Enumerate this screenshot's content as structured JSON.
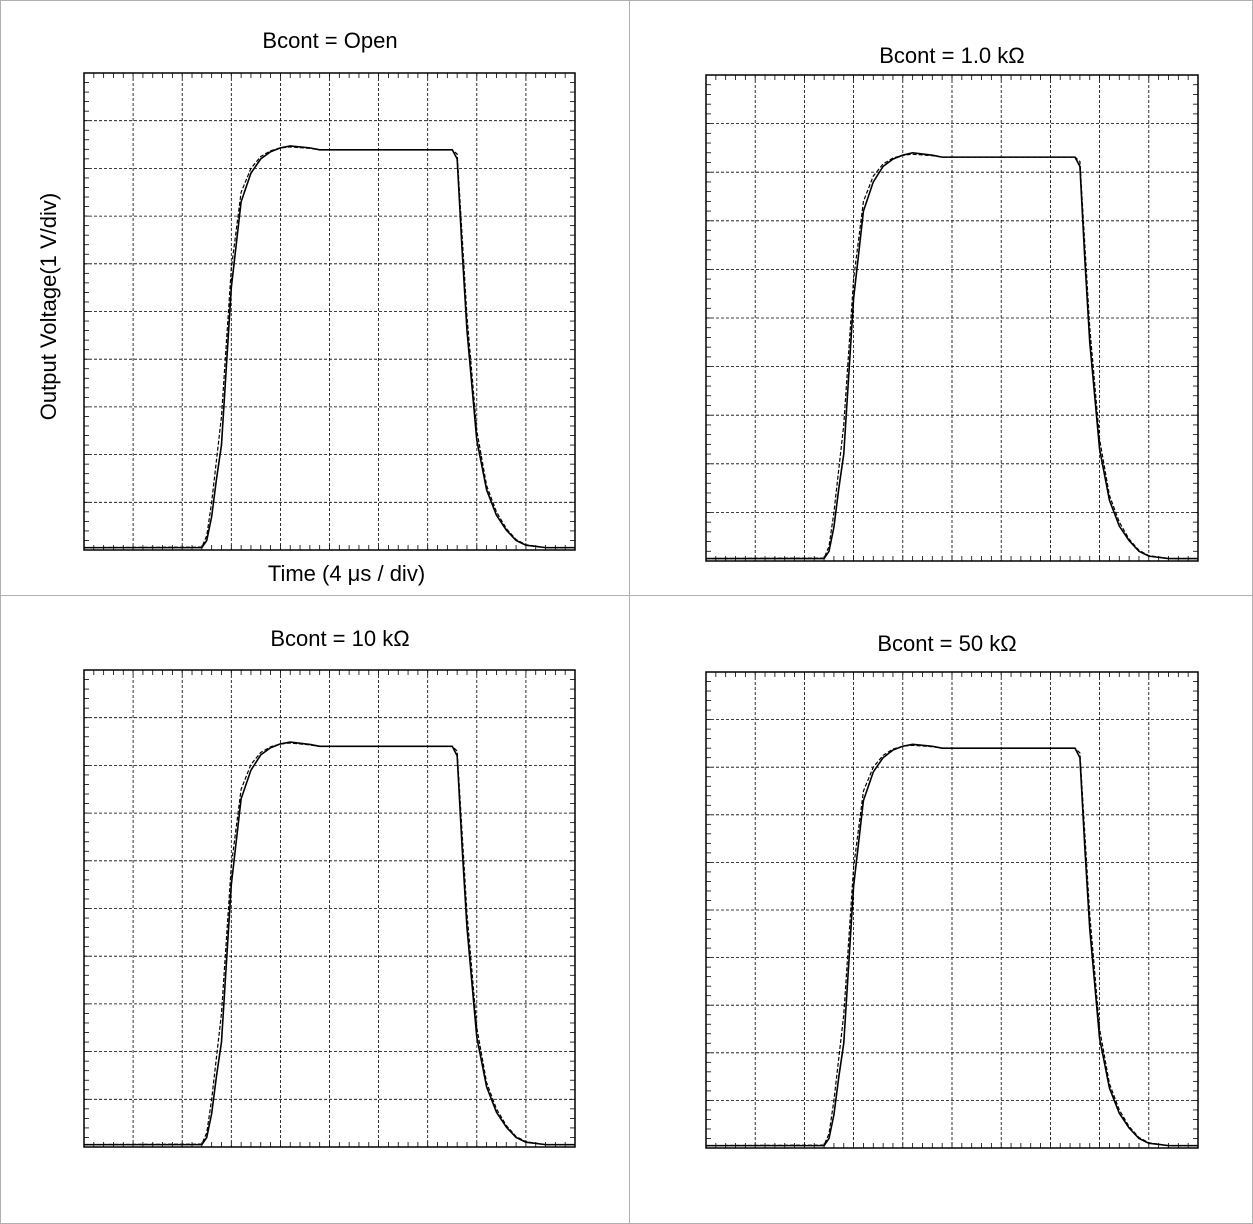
{
  "chart_data": [
    {
      "type": "line",
      "title": "Bcont = Open",
      "x_label": "Time (4 μs / div)",
      "y_label": "Output Voltage(1 V/div)",
      "x": [
        0,
        2.4,
        2.5,
        2.6,
        2.7,
        2.8,
        3.0,
        3.2,
        3.4,
        3.6,
        3.8,
        4.0,
        4.2,
        4.6,
        4.8,
        7.5,
        7.6,
        7.7,
        7.8,
        8.0,
        8.2,
        8.4,
        8.6,
        8.8,
        9.0,
        9.4,
        10
      ],
      "series": [
        {
          "color": "#000000",
          "line_style": "solid",
          "values": [
            0.05,
            0.05,
            0.2,
            0.7,
            1.5,
            2.2,
            5.5,
            7.3,
            7.9,
            8.2,
            8.35,
            8.43,
            8.47,
            8.43,
            8.39,
            8.39,
            8.2,
            6.3,
            4.6,
            2.3,
            1.26,
            0.73,
            0.42,
            0.2,
            0.1,
            0.05,
            0.05
          ]
        },
        {
          "color": "#000000",
          "line_style": "dashed",
          "values": [
            0.05,
            0.06,
            0.3,
            1.0,
            1.9,
            2.8,
            5.9,
            7.5,
            8.0,
            8.25,
            8.37,
            8.43,
            8.45,
            8.42,
            8.39,
            8.39,
            8.3,
            6.6,
            4.9,
            2.5,
            1.35,
            0.8,
            0.45,
            0.22,
            0.11,
            0.05,
            0.05
          ]
        }
      ],
      "xlim": [
        0,
        10
      ],
      "ylim": [
        0,
        10
      ],
      "grid": true
    },
    {
      "type": "line",
      "title": "Bcont = 1.0 kΩ",
      "x": [
        0,
        2.4,
        2.5,
        2.6,
        2.7,
        2.8,
        3.0,
        3.2,
        3.4,
        3.6,
        3.8,
        4.0,
        4.2,
        4.6,
        4.8,
        7.5,
        7.6,
        7.7,
        7.8,
        8.0,
        8.2,
        8.4,
        8.6,
        8.8,
        9.0,
        9.4,
        10
      ],
      "series": [
        {
          "color": "#000000",
          "line_style": "solid",
          "values": [
            0.05,
            0.05,
            0.2,
            0.7,
            1.5,
            2.2,
            5.4,
            7.2,
            7.8,
            8.12,
            8.27,
            8.35,
            8.4,
            8.35,
            8.31,
            8.31,
            8.12,
            6.2,
            4.5,
            2.3,
            1.25,
            0.72,
            0.42,
            0.2,
            0.1,
            0.05,
            0.05
          ]
        },
        {
          "color": "#000000",
          "line_style": "dashed",
          "values": [
            0.05,
            0.06,
            0.3,
            1.0,
            1.9,
            2.8,
            5.8,
            7.4,
            7.92,
            8.17,
            8.29,
            8.35,
            8.37,
            8.34,
            8.31,
            8.31,
            8.22,
            6.5,
            4.8,
            2.5,
            1.35,
            0.8,
            0.45,
            0.22,
            0.11,
            0.05,
            0.05
          ]
        }
      ],
      "xlim": [
        0,
        10
      ],
      "ylim": [
        0,
        10
      ],
      "grid": true
    },
    {
      "type": "line",
      "title": "Bcont = 10 kΩ",
      "x": [
        0,
        2.4,
        2.5,
        2.6,
        2.7,
        2.8,
        3.0,
        3.2,
        3.4,
        3.6,
        3.8,
        4.0,
        4.2,
        4.6,
        4.8,
        7.5,
        7.6,
        7.7,
        7.8,
        8.0,
        8.2,
        8.4,
        8.6,
        8.8,
        9.0,
        9.4,
        10
      ],
      "series": [
        {
          "color": "#000000",
          "line_style": "solid",
          "values": [
            0.05,
            0.05,
            0.2,
            0.7,
            1.5,
            2.2,
            5.5,
            7.3,
            7.9,
            8.22,
            8.37,
            8.45,
            8.49,
            8.44,
            8.4,
            8.4,
            8.2,
            6.3,
            4.6,
            2.3,
            1.26,
            0.73,
            0.42,
            0.2,
            0.1,
            0.05,
            0.05
          ]
        },
        {
          "color": "#000000",
          "line_style": "dashed",
          "values": [
            0.05,
            0.06,
            0.3,
            1.0,
            1.9,
            2.8,
            5.9,
            7.5,
            8.02,
            8.27,
            8.39,
            8.45,
            8.47,
            8.43,
            8.4,
            8.4,
            8.3,
            6.6,
            4.9,
            2.5,
            1.35,
            0.8,
            0.45,
            0.22,
            0.11,
            0.05,
            0.05
          ]
        }
      ],
      "xlim": [
        0,
        10
      ],
      "ylim": [
        0,
        10
      ],
      "grid": true
    },
    {
      "type": "line",
      "title": "Bcont = 50 kΩ",
      "x": [
        0,
        2.4,
        2.5,
        2.6,
        2.7,
        2.8,
        3.0,
        3.2,
        3.4,
        3.6,
        3.8,
        4.0,
        4.2,
        4.6,
        4.8,
        7.5,
        7.6,
        7.7,
        7.8,
        8.0,
        8.2,
        8.4,
        8.6,
        8.8,
        9.0,
        9.4,
        10
      ],
      "series": [
        {
          "color": "#000000",
          "line_style": "solid",
          "values": [
            0.05,
            0.05,
            0.2,
            0.7,
            1.5,
            2.2,
            5.5,
            7.3,
            7.9,
            8.2,
            8.36,
            8.44,
            8.48,
            8.44,
            8.4,
            8.4,
            8.2,
            6.3,
            4.6,
            2.3,
            1.26,
            0.73,
            0.42,
            0.2,
            0.1,
            0.05,
            0.05
          ]
        },
        {
          "color": "#000000",
          "line_style": "dashed",
          "values": [
            0.05,
            0.06,
            0.3,
            1.0,
            1.9,
            2.8,
            5.9,
            7.5,
            8.0,
            8.25,
            8.38,
            8.44,
            8.46,
            8.43,
            8.4,
            8.4,
            8.3,
            6.6,
            4.9,
            2.5,
            1.35,
            0.8,
            0.45,
            0.22,
            0.11,
            0.05,
            0.05
          ]
        }
      ],
      "xlim": [
        0,
        10
      ],
      "ylim": [
        0,
        10
      ],
      "grid": true
    }
  ]
}
